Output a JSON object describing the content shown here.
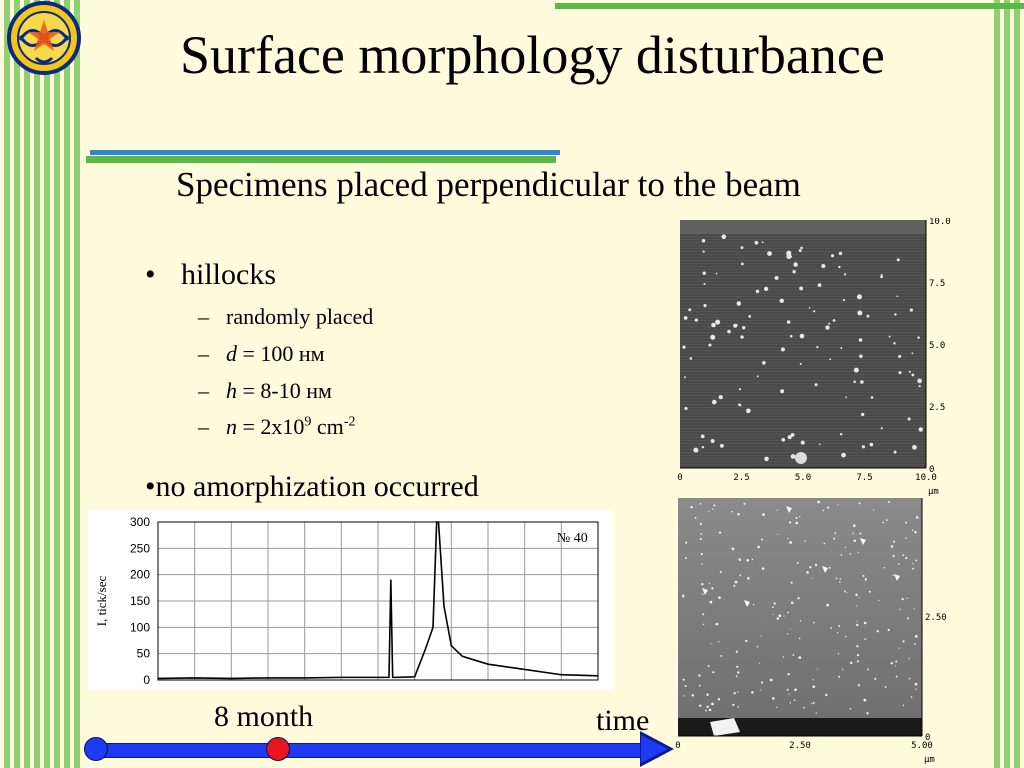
{
  "slide": {
    "title": "Surface morphology disturbance",
    "subtitle": "Specimens placed perpendicular to the beam",
    "bullet1": {
      "marker": "•",
      "text": "hillocks"
    },
    "subitems": [
      {
        "dash": "–",
        "text": "randomly placed"
      },
      {
        "dash": "–",
        "var": "d",
        "rest": " = 100 нм"
      },
      {
        "dash": "–",
        "var": "h",
        "rest": " = 8-10 нм"
      },
      {
        "dash": "–",
        "var": "n",
        "eq": " = 2x10",
        "sup1": "9",
        "unit": " cm",
        "sup2": "-2"
      }
    ],
    "bullet2": "•no amorphization occurred",
    "timeline": {
      "month_label": "8 month",
      "time_label": "time",
      "start_color": "#1d3bf5",
      "marker_color": "#e8141e"
    }
  },
  "chart_data": {
    "type": "line",
    "annotation": "№ 40",
    "ylabel": "I, tick/sec",
    "yticks": [
      "300",
      "250",
      "200",
      "150",
      "100",
      "50",
      "0"
    ],
    "ylim": [
      0,
      300
    ],
    "xlim": [
      0,
      12
    ],
    "grid": true,
    "x": [
      0,
      1,
      2,
      3,
      4,
      5,
      6.3,
      6.35,
      6.4,
      6.5,
      7,
      7.3,
      7.5,
      7.6,
      7.65,
      7.8,
      8,
      8.3,
      9,
      10,
      11,
      12
    ],
    "values": [
      3,
      4,
      3,
      4,
      4,
      5,
      5,
      190,
      5,
      5,
      6,
      60,
      100,
      300,
      300,
      140,
      65,
      45,
      30,
      20,
      10,
      8
    ]
  },
  "afm_top": {
    "x_ticks": [
      "0",
      "2.5",
      "5.0",
      "7.5",
      "10.0"
    ],
    "y_ticks": [
      "10.0",
      "7.5",
      "5.0",
      "2.5",
      "0"
    ],
    "unit": "μm"
  },
  "afm_bottom": {
    "x_ticks": [
      "0",
      "2.50",
      "5.00"
    ],
    "y_ticks": [
      "2.50",
      "0"
    ],
    "unit": "μm"
  }
}
